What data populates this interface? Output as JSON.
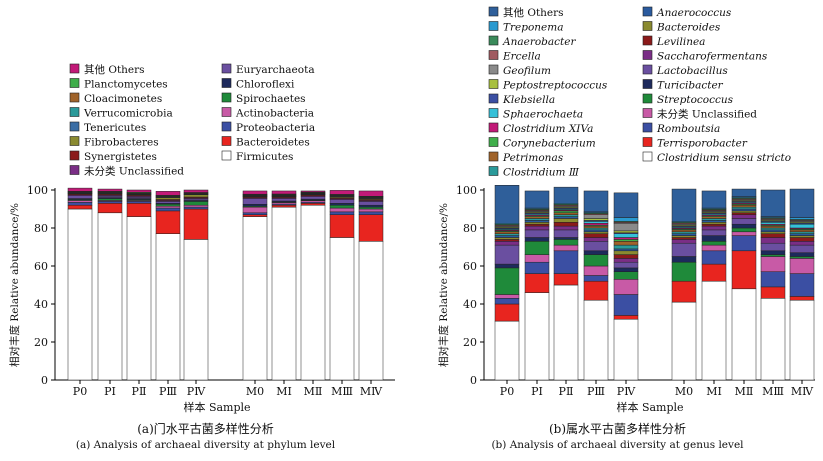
{
  "captions": {
    "a_cn": "(a)门水平古菌多样性分析",
    "a_en": "(a) Analysis of archaeal diversity at phylum level",
    "b_cn": "(b)属水平古菌多样性分析",
    "b_en": "(b) Analysis of archaeal diversity at genus level"
  },
  "chart_data": [
    {
      "type": "bar",
      "stacked": true,
      "title": "",
      "xlabel": "样本 Sample",
      "ylabel": "相对丰度 Relative abundance/%",
      "ylim": [
        0,
        100
      ],
      "yticks": [
        0,
        20,
        40,
        60,
        80,
        100
      ],
      "categories": [
        "P0",
        "PⅠ",
        "PⅡ",
        "PⅢ",
        "PⅣ",
        "M0",
        "MⅠ",
        "MⅡ",
        "MⅢ",
        "MⅣ"
      ],
      "legend_columns": [
        [
          "其他 Others",
          "Planctomycetes",
          "Cloacimonetes",
          "Verrucomicrobia",
          "Tenericutes",
          "Fibrobacteres",
          "Synergistetes",
          "未分类 Unclassified"
        ],
        [
          "Euryarchaeota",
          "Chloroflexi",
          "Spirochaetes",
          "Actinobacteria",
          "Proteobacteria",
          "Bacteroidetes",
          "Firmicutes"
        ]
      ],
      "series": [
        {
          "name": "Firmicutes",
          "color": "#ffffff",
          "values": [
            90,
            88,
            86,
            77,
            74,
            86,
            91,
            92,
            75,
            73
          ]
        },
        {
          "name": "Bacteroidetes",
          "color": "#e8251f",
          "values": [
            2,
            5,
            7,
            12,
            16,
            1,
            1,
            1,
            12,
            14
          ]
        },
        {
          "name": "Proteobacteria",
          "color": "#3b4fa3",
          "values": [
            1.5,
            1,
            1,
            1.5,
            1,
            1,
            0.6,
            0.6,
            1.5,
            1.5
          ]
        },
        {
          "name": "Actinobacteria",
          "color": "#c85aa6",
          "values": [
            1,
            0.5,
            0.5,
            1,
            1,
            3,
            0.8,
            0.8,
            2,
            1.5
          ]
        },
        {
          "name": "Spirochaetes",
          "color": "#1f8a3a",
          "values": [
            0.5,
            1,
            0.5,
            1,
            2,
            0.5,
            0.3,
            0.3,
            1.5,
            1
          ]
        },
        {
          "name": "Chloroflexi",
          "color": "#1d2a5c",
          "values": [
            0.5,
            0.5,
            0.5,
            0.5,
            0.5,
            1,
            0.5,
            0.5,
            1,
            1
          ]
        },
        {
          "name": "Euryarchaeota",
          "color": "#6a4fa0",
          "values": [
            1.5,
            0.8,
            0.7,
            1,
            0.8,
            3,
            1.3,
            1.3,
            2,
            2
          ]
        },
        {
          "name": "未分类 Unclassified",
          "color": "#7a2e86",
          "values": [
            0.5,
            0.5,
            0.5,
            0.5,
            0.5,
            0.5,
            0.5,
            0.5,
            0.5,
            0.5
          ]
        },
        {
          "name": "Synergistetes",
          "color": "#8b1a1a",
          "values": [
            0.5,
            0.5,
            0.5,
            0.5,
            0.5,
            0.5,
            0.5,
            0.5,
            0.5,
            0.5
          ]
        },
        {
          "name": "Fibrobacteres",
          "color": "#8a8a30",
          "values": [
            0.2,
            0.3,
            0.3,
            1,
            1.2,
            0.2,
            0.2,
            0.2,
            0.5,
            0.5
          ]
        },
        {
          "name": "Tenericutes",
          "color": "#3a6ea5",
          "values": [
            0.3,
            0.3,
            0.3,
            0.3,
            0.3,
            0.3,
            0.3,
            0.3,
            0.3,
            0.3
          ]
        },
        {
          "name": "Verrucomicrobia",
          "color": "#2a9a9a",
          "values": [
            0.3,
            0.3,
            0.3,
            0.3,
            0.3,
            0.3,
            0.3,
            0.3,
            0.3,
            0.3
          ]
        },
        {
          "name": "Cloacimonetes",
          "color": "#a0632a",
          "values": [
            0.3,
            0.3,
            0.3,
            0.3,
            0.3,
            0.3,
            0.3,
            0.3,
            0.3,
            0.3
          ]
        },
        {
          "name": "Planctomycetes",
          "color": "#3fae4a",
          "values": [
            0.2,
            0.3,
            0.4,
            0.3,
            0.3,
            0.2,
            0.3,
            0.3,
            0.3,
            0.3
          ]
        },
        {
          "name": "其他 Others",
          "color": "#c21a78",
          "values": [
            1.7,
            1.2,
            1.2,
            2.1,
            1.3,
            1.7,
            1.6,
            0.6,
            2.1,
            2.8
          ]
        }
      ]
    },
    {
      "type": "bar",
      "stacked": true,
      "title": "",
      "xlabel": "样本 Sample",
      "ylabel": "相对丰度 Relative abundance/%",
      "ylim": [
        0,
        100
      ],
      "yticks": [
        0,
        20,
        40,
        60,
        80,
        100
      ],
      "categories": [
        "P0",
        "PⅠ",
        "PⅡ",
        "PⅢ",
        "PⅣ",
        "M0",
        "MⅠ",
        "MⅡ",
        "MⅢ",
        "MⅣ"
      ],
      "legend_columns": [
        [
          "其他 Others",
          "Treponema",
          "Anaerobacter",
          "Ercella",
          "Geofilum",
          "Peptostreptococcus",
          "Klebsiella",
          "Sphaerochaeta",
          "Clostridium XIVa",
          "Corynebacterium",
          "Petrimonas",
          "Clostridium Ⅲ"
        ],
        [
          "Anaerococcus",
          "Bacteroides",
          "Levilinea",
          "Saccharofermentans",
          "Lactobacillus",
          "Turicibacter",
          "Streptococcus",
          "未分类 Unclassified",
          "Romboutsia",
          "Terrisporobacter",
          "Clostridium sensu stricto"
        ]
      ],
      "series": [
        {
          "name": "Clostridium sensu stricto",
          "color": "#ffffff",
          "values": [
            31,
            46,
            50,
            42,
            32,
            41,
            52,
            48,
            43,
            42
          ]
        },
        {
          "name": "Terrisporobacter",
          "color": "#e8251f",
          "values": [
            9,
            10,
            6,
            10,
            2,
            11,
            9,
            20,
            6,
            2
          ]
        },
        {
          "name": "Romboutsia",
          "color": "#3b4fa3",
          "values": [
            3,
            6,
            12,
            3,
            11,
            0,
            7,
            8,
            8,
            12
          ]
        },
        {
          "name": "未分类 Unclassified",
          "color": "#c85aa6",
          "values": [
            2,
            4,
            3,
            5,
            8,
            0,
            3,
            2,
            8,
            8
          ]
        },
        {
          "name": "Streptococcus",
          "color": "#1f8a3a",
          "values": [
            14,
            7,
            3,
            6,
            4,
            10,
            2,
            2,
            1,
            1
          ]
        },
        {
          "name": "Turicibacter",
          "color": "#1d2a5c",
          "values": [
            2,
            2,
            1,
            2,
            2,
            3,
            3,
            2,
            2,
            2
          ]
        },
        {
          "name": "Lactobacillus",
          "color": "#6a4fa0",
          "values": [
            10,
            4,
            4,
            5,
            3,
            7,
            3,
            3,
            4,
            4
          ]
        },
        {
          "name": "Saccharofermentans",
          "color": "#7a2e86",
          "values": [
            2,
            2,
            2,
            2,
            2,
            2,
            2,
            2,
            3,
            2
          ]
        },
        {
          "name": "Levilinea",
          "color": "#8b1a1a",
          "values": [
            1,
            1,
            2,
            2,
            2,
            1,
            1,
            1,
            2,
            2
          ]
        },
        {
          "name": "Bacteroides",
          "color": "#8a8a30",
          "values": [
            1,
            1,
            2,
            1,
            2,
            1,
            1,
            1,
            1,
            1
          ]
        },
        {
          "name": "Anaerococcus",
          "color": "#2a5a9e",
          "values": [
            1,
            1,
            1,
            1,
            1,
            1,
            1,
            1,
            1,
            1
          ]
        },
        {
          "name": "Clostridium Ⅲ",
          "color": "#2a9a9a",
          "values": [
            1,
            1,
            1,
            1,
            2,
            1,
            1,
            1,
            1,
            1
          ]
        },
        {
          "name": "Petrimonas",
          "color": "#a0632a",
          "values": [
            1,
            1,
            1,
            1,
            2,
            1,
            1,
            1,
            1,
            1
          ]
        },
        {
          "name": "Corynebacterium",
          "color": "#3fae4a",
          "values": [
            0.5,
            0.5,
            1,
            0.5,
            1,
            0.5,
            0.5,
            0.5,
            0.5,
            0.5
          ]
        },
        {
          "name": "Clostridium XIVa",
          "color": "#c21a78",
          "values": [
            0.5,
            0.5,
            0.5,
            1,
            1,
            0.5,
            0.5,
            0.5,
            0.5,
            0.5
          ]
        },
        {
          "name": "Sphaerochaeta",
          "color": "#35c0d8",
          "values": [
            0.5,
            0.5,
            0.5,
            1,
            2,
            0.5,
            0.5,
            0.5,
            1,
            2
          ]
        },
        {
          "name": "Klebsiella",
          "color": "#3b4fa3",
          "values": [
            0.5,
            0.5,
            0.5,
            0.5,
            0.5,
            0.5,
            0.5,
            0.5,
            0.5,
            0.5
          ]
        },
        {
          "name": "Peptostreptococcus",
          "color": "#a8c040",
          "values": [
            0.5,
            0.5,
            0.5,
            1,
            1,
            0.5,
            0.5,
            0.5,
            0.5,
            0.5
          ]
        },
        {
          "name": "Geofilum",
          "color": "#8a8a8a",
          "values": [
            0.5,
            0.5,
            0.5,
            2,
            4,
            0.5,
            0.5,
            0.5,
            0.5,
            0.5
          ]
        },
        {
          "name": "Ercella",
          "color": "#a05a60",
          "values": [
            0.5,
            0.5,
            0.5,
            0.5,
            0.5,
            0.5,
            0.5,
            0.5,
            0.5,
            0.5
          ]
        },
        {
          "name": "Anaerobacter",
          "color": "#3a8a5a",
          "values": [
            0.5,
            0.5,
            0.5,
            0.5,
            0.5,
            0.5,
            0.5,
            0.5,
            0.5,
            0.5
          ]
        },
        {
          "name": "Treponema",
          "color": "#2a9ad0",
          "values": [
            0.5,
            0.5,
            0.5,
            0.5,
            2,
            0.5,
            0.5,
            0.5,
            0.5,
            1
          ]
        },
        {
          "name": "其他 Others",
          "color": "#2f5f9a",
          "values": [
            20,
            9,
            8.5,
            11,
            13,
            17,
            9,
            4,
            14,
            15
          ]
        }
      ]
    }
  ]
}
